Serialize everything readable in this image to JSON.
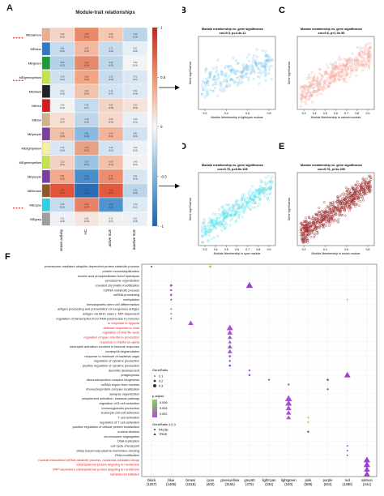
{
  "panelA": {
    "label": "A",
    "title": "Module-trait relationships",
    "modules": [
      "MEsalmon",
      "MEblue",
      "MEgreen",
      "MEgreenyellow",
      "MEblack",
      "MEred",
      "MEtan",
      "MEpurple",
      "MElightyellow",
      "MEgreenyellow2",
      "MEpurple2",
      "MEbrown",
      "MEcyan",
      "MEgrey"
    ],
    "module_labels_shown": [
      "MEsalmon",
      "MEblue",
      "MEgreen",
      "MEgreenyellow",
      "MEblack",
      "MEred",
      "MEtan",
      "MEpurple",
      "MElightyellow",
      "MEgreenyellow",
      "MEpurple",
      "MEbrown",
      "MEcyan",
      "MEgrey"
    ],
    "traits": [
      "Disease activity",
      "HC",
      "active SLE",
      "inactive SLE"
    ],
    "colorbar_ticks": [
      "1",
      "0.5",
      "0",
      "-0.5",
      "-1"
    ]
  },
  "panelB": {
    "label": "B",
    "title": "Module membership vs. gene significance",
    "subtitle": "cor=0.3, p=4.4e-11",
    "xlabel": "Module Membership in lightcyan module",
    "ylabel": "Gene significance",
    "xticks": [
      "0.2",
      "0.4",
      "0.6",
      "0.8"
    ]
  },
  "panelC": {
    "label": "C",
    "title": "Module membership vs. gene significance",
    "subtitle": "cor=0.6, p<1.0e-50",
    "xlabel": "Module Membership in salmon module",
    "ylabel": "Gene significance",
    "xticks": [
      "0.3",
      "0.4",
      "0.5",
      "0.6",
      "0.7",
      "0.8",
      "0.9"
    ]
  },
  "panelD": {
    "label": "D",
    "title": "Module membership vs. gene significance",
    "subtitle": "cor=0.76, p=8.8e-108",
    "xlabel": "Module Membership in cyan module",
    "ylabel": "Gene significance",
    "xticks": [
      "0.3",
      "0.4",
      "0.5",
      "0.6",
      "0.7",
      "0.8",
      "0.9"
    ]
  },
  "panelE": {
    "label": "E",
    "title": "Module membership vs. gene significance",
    "subtitle": "cor=0.76, p<1e-200",
    "xlabel": "Module Membership in brown module",
    "ylabel": "Gene significance",
    "xticks": [
      "0.2",
      "0.4",
      "0.6",
      "0.8"
    ]
  },
  "panelF": {
    "label": "F",
    "terms": [
      "proteasome-mediated ubiquitin-dependent protein catabolic process",
      "protein monoubiquitination",
      "nucleic acid phosphodiester bond hydrolysis",
      "peroxisome organization",
      "covalent chromatin modification",
      "ncRNA metabolic process",
      "ncRNA processing",
      "methylation",
      "hematopoietic stem cell differentiation",
      "antigen processing and presentation of exogenous antigen",
      "antigen via MHC class I, TAP-dependent",
      "regulation of transcription from RNA polymerase II promoter",
      "in response to hypoxia",
      "defense response to virus",
      "regulation of viral life cycle",
      "regulation of type I interferon production",
      "response to interferon-alpha",
      "neutrophil activation involved in immune response",
      "neutrophil degranulation",
      "response to molecule of bacterial origin",
      "regulation of cytokine production",
      "positive regulation of cytokine production",
      "dendritic development",
      "phagocytosis",
      "ribonucleoprotein complex biogenesis",
      "ncRNA export from nucleus",
      "ribonucleoprotein complex localization",
      "synapse organization",
      "complement activation, classical pathway",
      "regulation of B cell activation",
      "immunoglobulin production",
      "leukocyte cell-cell adhesion",
      "T cell activation",
      "regulation of T cell activation",
      "positive regulation of cellular protein localization",
      "nuclear division",
      "chromosome segregation",
      "DNA replication",
      "cell cycle checkpoint",
      "ciliary basal body-plasma membrane docking",
      "RNA modification",
      "nuclear-transcribed mRNA catabolic process, nonsense-mediated decay",
      "cotranslational protein targeting to membrane",
      "SRP-dependent cotranslational protein targeting to membrane",
      "translational initiation"
    ],
    "red_terms": [
      12,
      13,
      14,
      15,
      16,
      41,
      42,
      43,
      44
    ],
    "modules": [
      "black",
      "blue",
      "brown",
      "cyan",
      "greenyellow",
      "grey60",
      "lightcyan",
      "lightgreen",
      "pink",
      "purple",
      "red",
      "salmon"
    ],
    "module_counts": [
      "(1267)",
      "(1406)",
      "(1519)",
      "(402)",
      "(3154)",
      "(475)",
      "(234)",
      "(230)",
      "(589)",
      "(624)",
      "(1490)",
      "(441)"
    ],
    "legend": {
      "gene_ratio_title": "GeneRatio",
      "gene_ratio_values": [
        "0.1",
        "0.2",
        "0.3"
      ],
      "padj_title": "p.adjust",
      "padj_values": [
        "0.006",
        "0.004",
        "0.002"
      ],
      "sig_title": "GeneRatio ≥ 0.1",
      "sig_values": [
        "FALSE",
        "TRUE"
      ]
    }
  }
}
